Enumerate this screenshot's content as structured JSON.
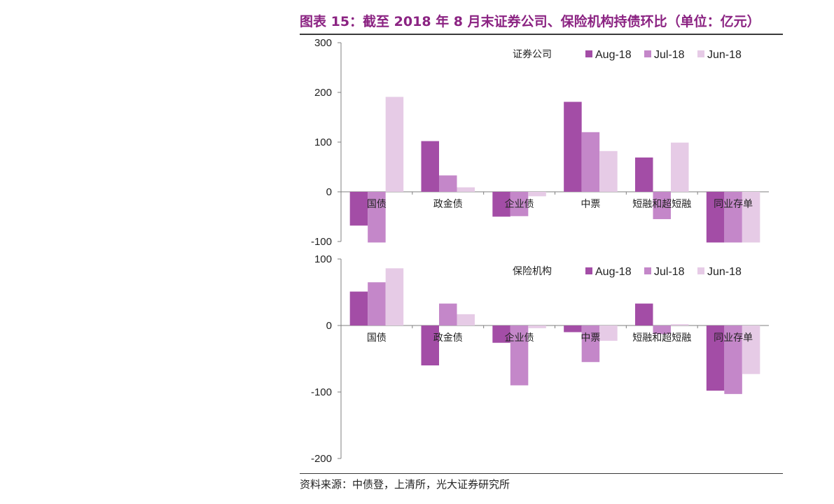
{
  "title": "图表 15：截至 2018 年 8 月末证券公司、保险机构持债环比（单位：亿元）",
  "source": "资料来源：中债登，上清所，光大证券研究所",
  "colors": {
    "Aug-18": "#A34DA6",
    "Jul-18": "#C487C9",
    "Jun-18": "#E6CBE6",
    "title": "#8B2382"
  },
  "chart_data": [
    {
      "type": "bar",
      "panel_label": "证券公司",
      "categories": [
        "国债",
        "政金债",
        "企业债",
        "中票",
        "短融和超短融",
        "同业存单"
      ],
      "series": [
        {
          "name": "Aug-18",
          "values": [
            -68,
            102,
            -50,
            181,
            69,
            -102
          ]
        },
        {
          "name": "Jul-18",
          "values": [
            -102,
            33,
            -49,
            120,
            -55,
            -102
          ]
        },
        {
          "name": "Jun-18",
          "values": [
            191,
            9,
            -9,
            82,
            99,
            -102
          ]
        }
      ],
      "ylim": [
        -100,
        300
      ],
      "yticks": [
        "-100",
        "0",
        "100",
        "200",
        "300"
      ],
      "legend": "top-right",
      "grid": false
    },
    {
      "type": "bar",
      "panel_label": "保险机构",
      "categories": [
        "国债",
        "政金债",
        "企业债",
        "中票",
        "短融和超短融",
        "同业存单"
      ],
      "series": [
        {
          "name": "Aug-18",
          "values": [
            51,
            -60,
            -26,
            -10,
            33,
            -98
          ]
        },
        {
          "name": "Jul-18",
          "values": [
            65,
            33,
            -90,
            -55,
            -13,
            -103
          ]
        },
        {
          "name": "Jun-18",
          "values": [
            86,
            17,
            -4,
            -23,
            2,
            -73
          ]
        }
      ],
      "ylim": [
        -200,
        100
      ],
      "yticks": [
        "-200",
        "-100",
        "0",
        "100"
      ],
      "legend": "top-right",
      "grid": false
    }
  ]
}
